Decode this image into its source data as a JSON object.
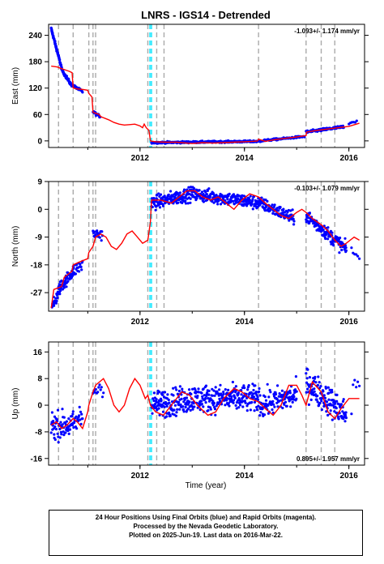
{
  "title": "LNRS - IGS14 - Detrended",
  "xlabel": "Time (year)",
  "footer": {
    "line1": "24 Hour Positions Using Final Orbits (blue) and Rapid Orbits (magenta).",
    "line2": "Processed by the Nevada Geodetic Laboratory.",
    "line3": "Plotted on 2025-Jun-19. Last data on 2016-Mar-22."
  },
  "colors": {
    "data": "#0000ff",
    "model": "#ff0000",
    "gray_line": "#aaaaaa",
    "cyan_line": "#00e5ff"
  },
  "chart_data": [
    {
      "type": "scatter",
      "panel": "east",
      "ylabel": "East (mm)",
      "rate_label": "-1.093+/- 1.174 mm/yr",
      "xlim": [
        2010.25,
        2016.3
      ],
      "ylim": [
        -15,
        265
      ],
      "yticks": [
        0,
        60,
        120,
        180,
        240
      ],
      "xticks": [
        2012,
        2014,
        2016
      ],
      "vlines_gray": [
        2010.44,
        2010.72,
        2011.02,
        2011.1,
        2011.15,
        2012.15,
        2012.32,
        2012.46,
        2014.27,
        2015.18,
        2015.47,
        2015.73
      ],
      "vlines_cyan": [
        2012.19,
        2012.22
      ],
      "model": [
        [
          2010.3,
          170
        ],
        [
          2010.42,
          168
        ],
        [
          2010.48,
          165
        ],
        [
          2010.55,
          162
        ],
        [
          2010.6,
          160
        ],
        [
          2010.65,
          158
        ],
        [
          2010.7,
          155
        ],
        [
          2010.72,
          120
        ],
        [
          2010.8,
          118
        ],
        [
          2010.9,
          117
        ],
        [
          2011.0,
          115
        ],
        [
          2011.02,
          108
        ],
        [
          2011.08,
          100
        ],
        [
          2011.1,
          65
        ],
        [
          2011.15,
          63
        ],
        [
          2011.22,
          60
        ],
        [
          2011.25,
          55
        ],
        [
          2011.4,
          48
        ],
        [
          2011.5,
          42
        ],
        [
          2011.6,
          38
        ],
        [
          2011.7,
          36
        ],
        [
          2011.8,
          37
        ],
        [
          2011.9,
          38
        ],
        [
          2012.0,
          34
        ],
        [
          2012.05,
          30
        ],
        [
          2012.08,
          38
        ],
        [
          2012.12,
          30
        ],
        [
          2012.17,
          24
        ],
        [
          2012.2,
          0
        ],
        [
          2012.3,
          -2
        ],
        [
          2012.5,
          -3
        ],
        [
          2012.7,
          -3
        ],
        [
          2012.9,
          -5
        ],
        [
          2013.0,
          -6
        ],
        [
          2013.2,
          -4
        ],
        [
          2013.4,
          -5
        ],
        [
          2013.6,
          -4
        ],
        [
          2013.8,
          -3
        ],
        [
          2014.0,
          -2
        ],
        [
          2014.15,
          -1
        ],
        [
          2014.25,
          0
        ],
        [
          2014.27,
          4
        ],
        [
          2014.4,
          -1
        ],
        [
          2014.6,
          3
        ],
        [
          2014.8,
          6
        ],
        [
          2015.0,
          9
        ],
        [
          2015.18,
          12
        ],
        [
          2015.19,
          20
        ],
        [
          2015.4,
          24
        ],
        [
          2015.6,
          27
        ],
        [
          2015.8,
          30
        ],
        [
          2016.0,
          33
        ],
        [
          2016.2,
          40
        ]
      ],
      "segments": [
        {
          "x0": 2010.3,
          "x1": 2010.5,
          "y0": 255,
          "y1": 165,
          "n": 80,
          "noise": 4
        },
        {
          "x0": 2010.5,
          "x1": 2010.68,
          "y0": 162,
          "y1": 128,
          "n": 40,
          "noise": 4
        },
        {
          "x0": 2010.68,
          "x1": 2010.9,
          "y0": 128,
          "y1": 112,
          "n": 40,
          "noise": 3
        },
        {
          "x0": 2011.1,
          "x1": 2011.24,
          "y0": 66,
          "y1": 55,
          "n": 18,
          "noise": 3
        },
        {
          "x0": 2012.22,
          "x1": 2014.3,
          "y0": -4,
          "y1": -1,
          "n": 320,
          "noise": 2
        },
        {
          "x0": 2014.3,
          "x1": 2015.15,
          "y0": 0,
          "y1": 10,
          "n": 90,
          "noise": 2
        },
        {
          "x0": 2015.18,
          "x1": 2015.9,
          "y0": 20,
          "y1": 32,
          "n": 120,
          "noise": 3
        },
        {
          "x0": 2016.0,
          "x1": 2016.15,
          "y0": 40,
          "y1": 45,
          "n": 6,
          "noise": 2
        }
      ]
    },
    {
      "type": "scatter",
      "panel": "north",
      "ylabel": "North (mm)",
      "rate_label": "-0.103+/- 1.079 mm/yr",
      "xlim": [
        2010.25,
        2016.3
      ],
      "ylim": [
        -33,
        9
      ],
      "yticks": [
        -27,
        -18,
        -9,
        0,
        9
      ],
      "xticks": [
        2012,
        2014,
        2016
      ],
      "vlines_gray": [
        2010.44,
        2010.72,
        2011.02,
        2011.1,
        2011.15,
        2012.15,
        2012.32,
        2012.46,
        2014.27,
        2015.18,
        2015.47,
        2015.73
      ],
      "vlines_cyan": [
        2012.19,
        2012.22
      ],
      "model": [
        [
          2010.3,
          -32
        ],
        [
          2010.35,
          -26
        ],
        [
          2010.5,
          -25
        ],
        [
          2010.55,
          -22
        ],
        [
          2010.7,
          -20
        ],
        [
          2010.72,
          -18
        ],
        [
          2010.85,
          -17
        ],
        [
          2011.0,
          -16
        ],
        [
          2011.02,
          -14
        ],
        [
          2011.1,
          -12
        ],
        [
          2011.15,
          -9
        ],
        [
          2011.25,
          -8
        ],
        [
          2011.35,
          -9
        ],
        [
          2011.45,
          -12
        ],
        [
          2011.55,
          -13
        ],
        [
          2011.65,
          -11
        ],
        [
          2011.75,
          -8
        ],
        [
          2011.85,
          -7
        ],
        [
          2011.95,
          -9
        ],
        [
          2012.05,
          -11
        ],
        [
          2012.15,
          -10
        ],
        [
          2012.2,
          -4
        ],
        [
          2012.22,
          3
        ],
        [
          2012.4,
          3
        ],
        [
          2012.6,
          2
        ],
        [
          2012.75,
          4
        ],
        [
          2012.9,
          6
        ],
        [
          2013.05,
          6
        ],
        [
          2013.2,
          4
        ],
        [
          2013.35,
          3
        ],
        [
          2013.5,
          4
        ],
        [
          2013.65,
          2
        ],
        [
          2013.8,
          0
        ],
        [
          2013.95,
          3
        ],
        [
          2014.1,
          5
        ],
        [
          2014.27,
          4
        ],
        [
          2014.4,
          2
        ],
        [
          2014.55,
          0
        ],
        [
          2014.7,
          -2
        ],
        [
          2014.85,
          -3
        ],
        [
          2015.0,
          -1
        ],
        [
          2015.1,
          0
        ],
        [
          2015.18,
          -1
        ],
        [
          2015.3,
          -3
        ],
        [
          2015.47,
          -5
        ],
        [
          2015.6,
          -7
        ],
        [
          2015.73,
          -10
        ],
        [
          2015.85,
          -12
        ],
        [
          2015.95,
          -11
        ],
        [
          2016.1,
          -9
        ],
        [
          2016.2,
          -10
        ]
      ],
      "segments": [
        {
          "x0": 2010.3,
          "x1": 2010.44,
          "y0": -33,
          "y1": -27,
          "n": 30,
          "noise": 2
        },
        {
          "x0": 2010.44,
          "x1": 2010.72,
          "y0": -26,
          "y1": -20,
          "n": 60,
          "noise": 2
        },
        {
          "x0": 2010.72,
          "x1": 2010.9,
          "y0": -20,
          "y1": -18,
          "n": 20,
          "noise": 2
        },
        {
          "x0": 2011.1,
          "x1": 2011.28,
          "y0": -8,
          "y1": -8,
          "n": 20,
          "noise": 2
        },
        {
          "x0": 2012.22,
          "x1": 2013.0,
          "y0": 2,
          "y1": 5,
          "n": 150,
          "noise": 2.2
        },
        {
          "x0": 2013.0,
          "x1": 2014.3,
          "y0": 5,
          "y1": 2,
          "n": 220,
          "noise": 2.2
        },
        {
          "x0": 2014.3,
          "x1": 2014.95,
          "y0": 2,
          "y1": -3,
          "n": 110,
          "noise": 2
        },
        {
          "x0": 2015.18,
          "x1": 2015.95,
          "y0": -2,
          "y1": -13,
          "n": 140,
          "noise": 2.2
        },
        {
          "x0": 2016.05,
          "x1": 2016.2,
          "y0": -13,
          "y1": -16,
          "n": 6,
          "noise": 1
        }
      ]
    },
    {
      "type": "scatter",
      "panel": "up",
      "ylabel": "Up (mm)",
      "rate_label": "0.895+/- 1.957 mm/yr",
      "xlim": [
        2010.25,
        2016.3
      ],
      "ylim": [
        -18,
        19
      ],
      "yticks": [
        -16,
        -8,
        0,
        8,
        16
      ],
      "xticks": [
        2012,
        2014,
        2016
      ],
      "vlines_gray": [
        2010.44,
        2010.72,
        2011.02,
        2011.1,
        2011.15,
        2012.15,
        2012.32,
        2012.46,
        2014.27,
        2015.18,
        2015.47,
        2015.73
      ],
      "vlines_cyan": [
        2012.19,
        2012.22
      ],
      "model": [
        [
          2010.3,
          -6
        ],
        [
          2010.4,
          -5
        ],
        [
          2010.5,
          -7
        ],
        [
          2010.6,
          -6
        ],
        [
          2010.72,
          -4
        ],
        [
          2010.8,
          -5
        ],
        [
          2010.9,
          -7
        ],
        [
          2011.0,
          -2
        ],
        [
          2011.02,
          0
        ],
        [
          2011.1,
          4
        ],
        [
          2011.15,
          6
        ],
        [
          2011.3,
          8
        ],
        [
          2011.4,
          5
        ],
        [
          2011.5,
          0
        ],
        [
          2011.6,
          -2
        ],
        [
          2011.7,
          0
        ],
        [
          2011.8,
          5
        ],
        [
          2011.9,
          8
        ],
        [
          2012.0,
          6
        ],
        [
          2012.1,
          2
        ],
        [
          2012.15,
          3
        ],
        [
          2012.2,
          0
        ],
        [
          2012.3,
          -2
        ],
        [
          2012.45,
          -3
        ],
        [
          2012.6,
          0
        ],
        [
          2012.8,
          4
        ],
        [
          2012.95,
          3
        ],
        [
          2013.1,
          0
        ],
        [
          2013.3,
          -3
        ],
        [
          2013.45,
          -2
        ],
        [
          2013.6,
          2
        ],
        [
          2013.8,
          5
        ],
        [
          2013.95,
          4
        ],
        [
          2014.1,
          2
        ],
        [
          2014.27,
          1
        ],
        [
          2014.4,
          -1
        ],
        [
          2014.55,
          -3
        ],
        [
          2014.7,
          0
        ],
        [
          2014.85,
          6
        ],
        [
          2015.0,
          6
        ],
        [
          2015.1,
          3
        ],
        [
          2015.18,
          0
        ],
        [
          2015.3,
          7
        ],
        [
          2015.47,
          4
        ],
        [
          2015.6,
          -2
        ],
        [
          2015.73,
          -4
        ],
        [
          2015.85,
          -1
        ],
        [
          2016.0,
          2
        ],
        [
          2016.2,
          2
        ]
      ],
      "segments": [
        {
          "x0": 2010.3,
          "x1": 2010.72,
          "y0": -6,
          "y1": -6,
          "n": 70,
          "noise": 4
        },
        {
          "x0": 2010.72,
          "x1": 2010.9,
          "y0": -6,
          "y1": -3,
          "n": 20,
          "noise": 4
        },
        {
          "x0": 2011.1,
          "x1": 2011.3,
          "y0": 4,
          "y1": 6,
          "n": 12,
          "noise": 3
        },
        {
          "x0": 2012.22,
          "x1": 2013.0,
          "y0": 0,
          "y1": 2,
          "n": 150,
          "noise": 4
        },
        {
          "x0": 2013.0,
          "x1": 2014.3,
          "y0": 2,
          "y1": 2,
          "n": 230,
          "noise": 4
        },
        {
          "x0": 2014.3,
          "x1": 2015.0,
          "y0": 0,
          "y1": 3,
          "n": 110,
          "noise": 4
        },
        {
          "x0": 2015.18,
          "x1": 2015.95,
          "y0": 7,
          "y1": -3,
          "n": 140,
          "noise": 4.5
        },
        {
          "x0": 2016.05,
          "x1": 2016.2,
          "y0": 2,
          "y1": 8,
          "n": 6,
          "noise": 6
        }
      ]
    }
  ]
}
